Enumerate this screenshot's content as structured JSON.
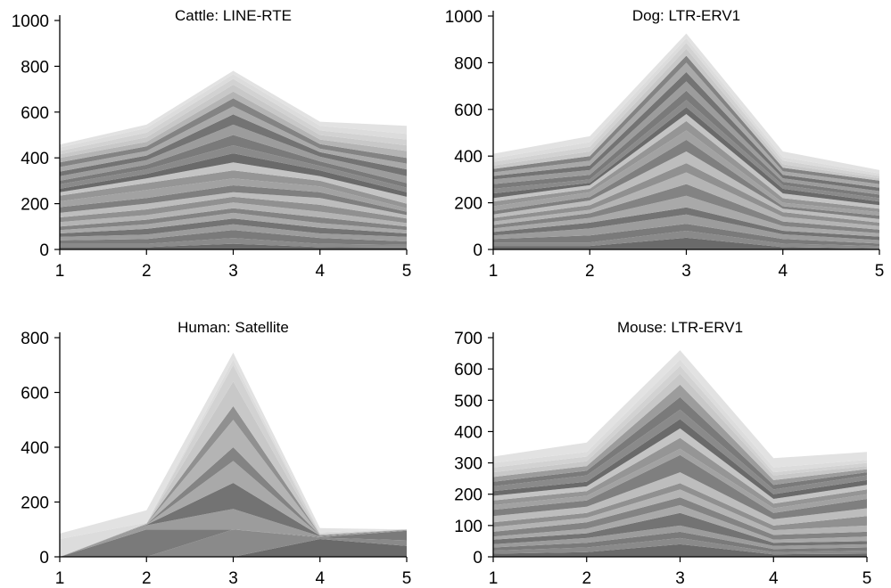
{
  "chart_data": [
    {
      "type": "area",
      "stacked": true,
      "title": "Cattle: LINE-RTE",
      "x": [
        1,
        2,
        3,
        4,
        5
      ],
      "ylim": [
        0,
        1000
      ],
      "yticks": [
        0,
        200,
        400,
        600,
        800,
        1000
      ],
      "xticks": [
        1,
        2,
        3,
        4,
        5
      ],
      "grid": false,
      "boundaries": [
        [
          0,
          0,
          0,
          0,
          0
        ],
        [
          10,
          10,
          25,
          10,
          8
        ],
        [
          25,
          25,
          50,
          25,
          20
        ],
        [
          40,
          45,
          85,
          50,
          35
        ],
        [
          55,
          65,
          110,
          70,
          55
        ],
        [
          70,
          90,
          135,
          95,
          70
        ],
        [
          85,
          110,
          160,
          115,
          85
        ],
        [
          100,
          130,
          180,
          140,
          100
        ],
        [
          120,
          150,
          205,
          165,
          115
        ],
        [
          140,
          175,
          230,
          195,
          135
        ],
        [
          160,
          200,
          250,
          225,
          150
        ],
        [
          185,
          225,
          280,
          250,
          165
        ],
        [
          210,
          260,
          310,
          275,
          180
        ],
        [
          235,
          290,
          345,
          300,
          200
        ],
        [
          250,
          310,
          380,
          320,
          230
        ],
        [
          265,
          330,
          420,
          345,
          250
        ],
        [
          285,
          350,
          455,
          365,
          270
        ],
        [
          300,
          370,
          500,
          385,
          290
        ],
        [
          320,
          390,
          545,
          405,
          320
        ],
        [
          340,
          410,
          590,
          425,
          350
        ],
        [
          360,
          430,
          625,
          440,
          375
        ],
        [
          380,
          450,
          660,
          460,
          400
        ],
        [
          400,
          470,
          690,
          480,
          430
        ],
        [
          415,
          490,
          720,
          500,
          455
        ],
        [
          430,
          510,
          745,
          520,
          480
        ],
        [
          445,
          530,
          765,
          540,
          505
        ],
        [
          458,
          545,
          780,
          558,
          540
        ]
      ]
    },
    {
      "type": "area",
      "stacked": true,
      "title": "Dog: LTR-ERV1",
      "x": [
        1,
        2,
        3,
        4,
        5
      ],
      "ylim": [
        0,
        1000
      ],
      "yticks": [
        0,
        200,
        400,
        600,
        800,
        1000
      ],
      "xticks": [
        1,
        2,
        3,
        4,
        5
      ],
      "grid": false,
      "boundaries": [
        [
          0,
          0,
          0,
          0,
          0
        ],
        [
          15,
          15,
          50,
          10,
          5
        ],
        [
          30,
          30,
          80,
          25,
          15
        ],
        [
          45,
          60,
          110,
          45,
          25
        ],
        [
          60,
          90,
          150,
          65,
          40
        ],
        [
          75,
          115,
          180,
          80,
          55
        ],
        [
          90,
          135,
          230,
          100,
          70
        ],
        [
          105,
          155,
          280,
          120,
          85
        ],
        [
          120,
          170,
          330,
          140,
          100
        ],
        [
          135,
          190,
          370,
          160,
          115
        ],
        [
          150,
          210,
          420,
          175,
          130
        ],
        [
          165,
          225,
          470,
          185,
          145
        ],
        [
          185,
          245,
          510,
          200,
          160
        ],
        [
          205,
          260,
          550,
          220,
          175
        ],
        [
          220,
          275,
          580,
          240,
          190
        ],
        [
          240,
          285,
          610,
          260,
          205
        ],
        [
          260,
          300,
          640,
          275,
          220
        ],
        [
          280,
          320,
          680,
          290,
          235
        ],
        [
          300,
          340,
          720,
          305,
          250
        ],
        [
          315,
          360,
          760,
          320,
          265
        ],
        [
          330,
          380,
          800,
          335,
          280
        ],
        [
          345,
          400,
          830,
          350,
          295
        ],
        [
          360,
          420,
          860,
          365,
          305
        ],
        [
          375,
          440,
          885,
          380,
          315
        ],
        [
          390,
          460,
          905,
          395,
          325
        ],
        [
          410,
          485,
          925,
          420,
          340
        ]
      ]
    },
    {
      "type": "area",
      "stacked": true,
      "title": "Human: Satellite",
      "x": [
        1,
        2,
        3,
        4,
        5
      ],
      "ylim": [
        0,
        800
      ],
      "yticks": [
        0,
        200,
        400,
        600,
        800
      ],
      "xticks": [
        1,
        2,
        3,
        4,
        5
      ],
      "grid": false,
      "boundaries": [
        [
          0,
          0,
          0,
          0,
          0
        ],
        [
          0,
          0,
          0,
          65,
          40
        ],
        [
          0,
          0,
          100,
          70,
          60
        ],
        [
          0,
          100,
          100,
          72,
          95
        ],
        [
          0,
          115,
          175,
          75,
          97
        ],
        [
          0,
          117,
          270,
          77,
          98
        ],
        [
          0,
          118,
          350,
          78,
          99
        ],
        [
          0,
          119,
          400,
          79,
          99
        ],
        [
          0,
          120,
          500,
          80,
          100
        ],
        [
          0,
          121,
          550,
          81,
          100
        ],
        [
          0,
          122,
          640,
          82,
          100
        ],
        [
          0,
          123,
          700,
          85,
          100
        ],
        [
          65,
          125,
          720,
          90,
          100
        ],
        [
          85,
          170,
          745,
          105,
          100
        ]
      ]
    },
    {
      "type": "area",
      "stacked": true,
      "title": "Mouse: LTR-ERV1",
      "x": [
        1,
        2,
        3,
        4,
        5
      ],
      "ylim": [
        0,
        700
      ],
      "yticks": [
        0,
        100,
        200,
        300,
        400,
        500,
        600,
        700
      ],
      "xticks": [
        1,
        2,
        3,
        4,
        5
      ],
      "grid": false,
      "boundaries": [
        [
          0,
          0,
          0,
          0,
          0
        ],
        [
          10,
          15,
          40,
          8,
          10
        ],
        [
          20,
          30,
          60,
          15,
          20
        ],
        [
          30,
          45,
          80,
          25,
          30
        ],
        [
          40,
          60,
          100,
          35,
          40
        ],
        [
          55,
          75,
          140,
          45,
          50
        ],
        [
          65,
          90,
          165,
          55,
          65
        ],
        [
          80,
          110,
          190,
          70,
          80
        ],
        [
          95,
          125,
          215,
          85,
          100
        ],
        [
          110,
          140,
          235,
          100,
          130
        ],
        [
          130,
          160,
          270,
          120,
          155
        ],
        [
          150,
          180,
          325,
          140,
          185
        ],
        [
          165,
          195,
          345,
          155,
          200
        ],
        [
          180,
          210,
          380,
          170,
          215
        ],
        [
          195,
          225,
          410,
          185,
          230
        ],
        [
          210,
          240,
          440,
          200,
          245
        ],
        [
          225,
          260,
          470,
          215,
          260
        ],
        [
          240,
          275,
          510,
          230,
          270
        ],
        [
          255,
          290,
          550,
          245,
          280
        ],
        [
          270,
          305,
          585,
          260,
          290
        ],
        [
          285,
          320,
          610,
          270,
          300
        ],
        [
          300,
          335,
          630,
          285,
          310
        ],
        [
          320,
          365,
          660,
          315,
          335
        ]
      ]
    }
  ]
}
